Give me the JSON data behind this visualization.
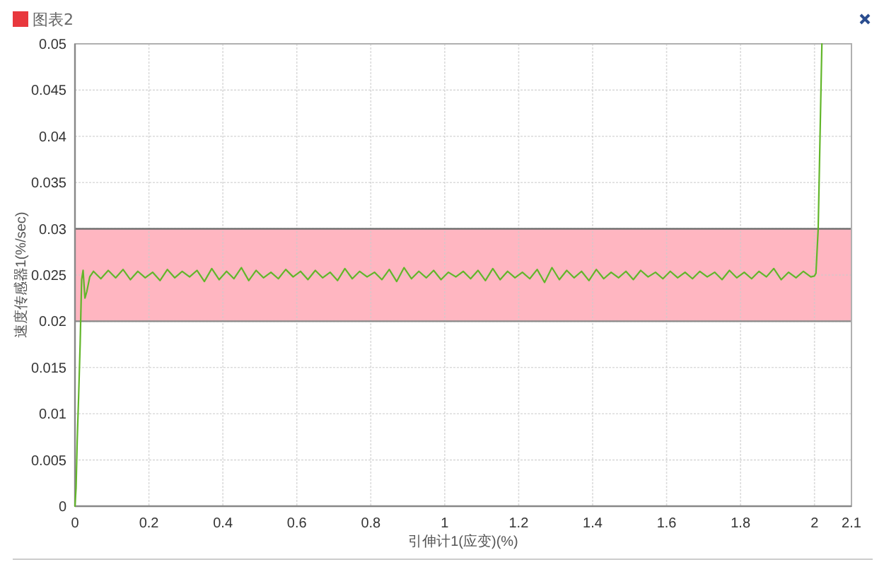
{
  "chart_data": {
    "type": "line",
    "title": "图表2",
    "xlabel": "引伸计1(应变)(%)",
    "ylabel": "速度传感器1(%/sec)",
    "xlim": [
      0,
      2.1
    ],
    "ylim": [
      0,
      0.05
    ],
    "xticks": [
      0,
      0.2,
      0.4,
      0.6,
      0.8,
      1,
      1.2,
      1.4,
      1.6,
      1.8,
      2,
      2.1
    ],
    "yticks": [
      0,
      0.005,
      0.01,
      0.015,
      0.02,
      0.025,
      0.03,
      0.035,
      0.04,
      0.045,
      0.05
    ],
    "grid": true,
    "bands": [
      {
        "axis": "y",
        "from": 0.02,
        "to": 0.03,
        "color": "#ffb6c1"
      }
    ],
    "ref_lines": [
      {
        "axis": "y",
        "value": 0.03,
        "color": "#666666"
      },
      {
        "axis": "y",
        "value": 0.02,
        "color": "#888888"
      }
    ],
    "color": "#62b62a",
    "x": [
      0,
      0.003,
      0.006,
      0.01,
      0.014,
      0.018,
      0.022,
      0.027,
      0.032,
      0.04,
      0.05,
      0.07,
      0.09,
      0.11,
      0.13,
      0.15,
      0.17,
      0.19,
      0.21,
      0.23,
      0.25,
      0.27,
      0.29,
      0.31,
      0.33,
      0.35,
      0.37,
      0.39,
      0.41,
      0.43,
      0.45,
      0.47,
      0.49,
      0.51,
      0.53,
      0.55,
      0.57,
      0.59,
      0.61,
      0.63,
      0.65,
      0.67,
      0.69,
      0.71,
      0.73,
      0.75,
      0.77,
      0.79,
      0.81,
      0.83,
      0.85,
      0.87,
      0.89,
      0.91,
      0.93,
      0.95,
      0.97,
      0.99,
      1.01,
      1.03,
      1.05,
      1.07,
      1.09,
      1.11,
      1.13,
      1.15,
      1.17,
      1.19,
      1.21,
      1.23,
      1.25,
      1.27,
      1.29,
      1.31,
      1.33,
      1.35,
      1.37,
      1.39,
      1.41,
      1.43,
      1.45,
      1.47,
      1.49,
      1.51,
      1.53,
      1.55,
      1.57,
      1.59,
      1.61,
      1.63,
      1.65,
      1.67,
      1.69,
      1.71,
      1.73,
      1.75,
      1.77,
      1.79,
      1.81,
      1.83,
      1.85,
      1.87,
      1.89,
      1.91,
      1.93,
      1.95,
      1.97,
      1.99,
      2.0,
      2.004,
      2.01,
      2.015,
      2.02
    ],
    "values": [
      0,
      0.002,
      0.007,
      0.012,
      0.0175,
      0.0245,
      0.0255,
      0.0225,
      0.0232,
      0.0248,
      0.0254,
      0.0246,
      0.0255,
      0.0247,
      0.0256,
      0.0245,
      0.0254,
      0.0247,
      0.0253,
      0.0244,
      0.0256,
      0.0247,
      0.0254,
      0.0248,
      0.0255,
      0.0243,
      0.0257,
      0.0245,
      0.0254,
      0.0246,
      0.0258,
      0.0244,
      0.0255,
      0.0247,
      0.0253,
      0.0246,
      0.0256,
      0.0248,
      0.0254,
      0.0245,
      0.0255,
      0.0247,
      0.0253,
      0.0244,
      0.0257,
      0.0246,
      0.0254,
      0.0248,
      0.0253,
      0.0245,
      0.0256,
      0.0243,
      0.0258,
      0.0246,
      0.0254,
      0.0247,
      0.0255,
      0.0245,
      0.0253,
      0.0248,
      0.0254,
      0.0246,
      0.0255,
      0.0244,
      0.0257,
      0.0245,
      0.0254,
      0.0247,
      0.0253,
      0.0246,
      0.0256,
      0.0242,
      0.0258,
      0.0245,
      0.0255,
      0.0247,
      0.0254,
      0.0244,
      0.0256,
      0.0246,
      0.0253,
      0.0247,
      0.0254,
      0.0245,
      0.0255,
      0.0248,
      0.0253,
      0.0246,
      0.0254,
      0.0247,
      0.0253,
      0.0246,
      0.0254,
      0.0248,
      0.0253,
      0.0245,
      0.0255,
      0.0247,
      0.0253,
      0.0246,
      0.0254,
      0.0248,
      0.0257,
      0.0245,
      0.0253,
      0.0247,
      0.0254,
      0.0248,
      0.0249,
      0.0252,
      0.03,
      0.04,
      0.05
    ]
  }
}
